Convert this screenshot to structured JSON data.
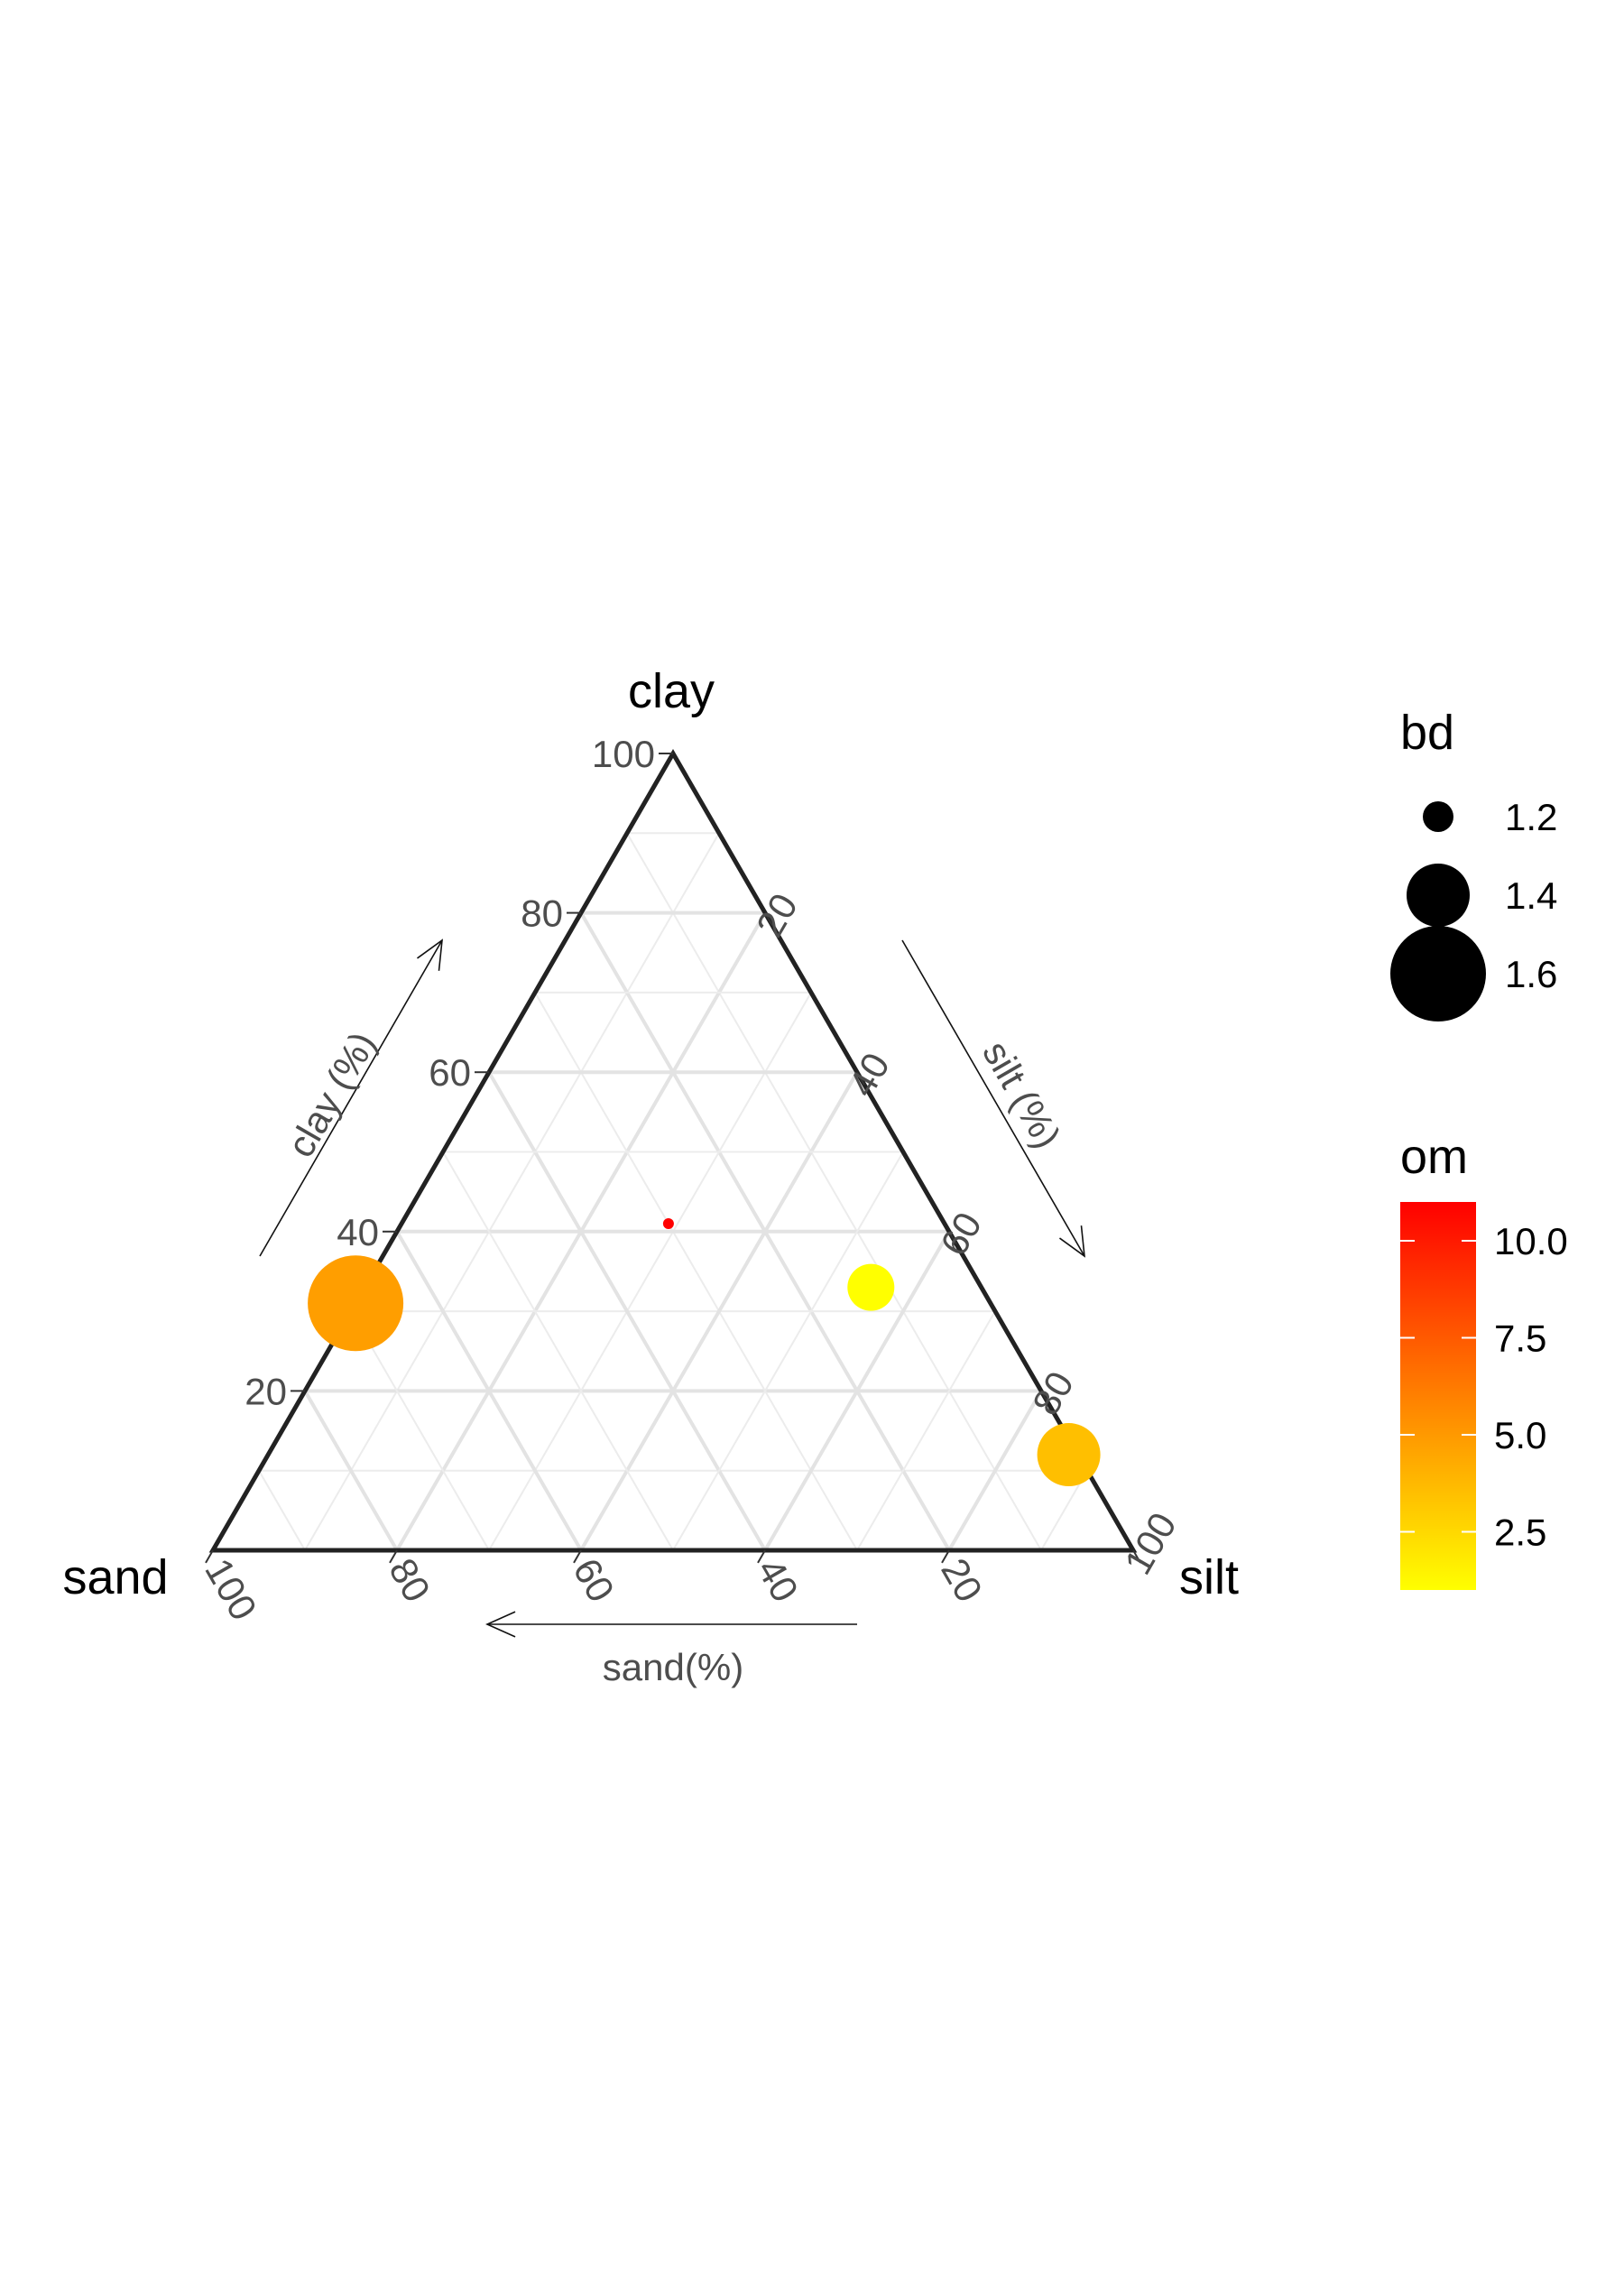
{
  "chart_data": {
    "type": "scatter",
    "subtype": "ternary",
    "grid": true,
    "legend_position": "right",
    "vertices": {
      "top": "clay",
      "left": "sand",
      "right": "silt"
    },
    "axis_titles": {
      "clay": "clay (%)",
      "silt": "silt (%)",
      "sand": "sand(%)"
    },
    "ticks": {
      "clay": [
        "20",
        "40",
        "60",
        "80",
        "100"
      ],
      "silt": [
        "20",
        "40",
        "60",
        "80",
        "100"
      ],
      "sand": [
        "100",
        "80",
        "60",
        "40",
        "20"
      ]
    },
    "points": [
      {
        "sand": 69,
        "silt": 0,
        "clay": 31,
        "bd": 1.6,
        "om": 4.8
      },
      {
        "sand": 30,
        "silt": 29,
        "clay": 41,
        "bd": 1.05,
        "om": 11.0
      },
      {
        "sand": 12,
        "silt": 55,
        "clay": 33,
        "bd": 1.3,
        "om": 1.0
      },
      {
        "sand": 1,
        "silt": 87,
        "clay": 12,
        "bd": 1.4,
        "om": 3.5
      }
    ],
    "legends": {
      "size": {
        "title": "bd",
        "labels": [
          "1.2",
          "1.4",
          "1.6"
        ],
        "values": [
          1.2,
          1.4,
          1.6
        ]
      },
      "color": {
        "title": "om",
        "labels": [
          "10.0",
          "7.5",
          "5.0",
          "2.5"
        ],
        "values": [
          10.0,
          7.5,
          5.0,
          2.5
        ],
        "range": [
          1.0,
          11.0
        ],
        "low_color": "#FFFF00",
        "high_color": "#FF0000"
      }
    }
  }
}
